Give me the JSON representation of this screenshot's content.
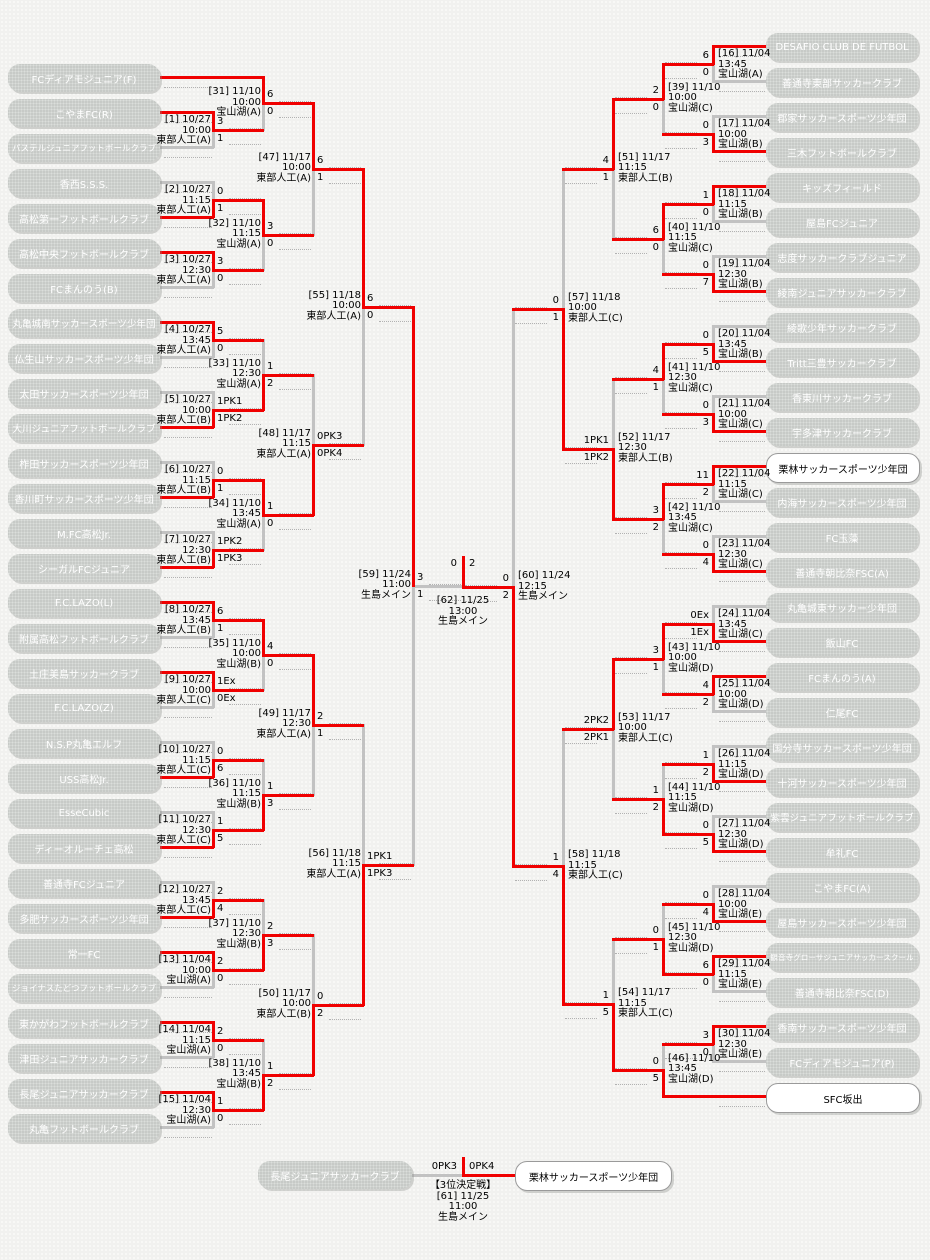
{
  "colors": {
    "red": "#f00000",
    "gray": "#c2c2c2",
    "box_bg": "#c7cac7",
    "box_text": "#ffffff",
    "winner_box_bg": "#ffffff",
    "winner_box_text": "#000000",
    "label_text": "#000000"
  },
  "highlight_teams": [
    "SFC坂出",
    "栗林サッカースポーツ少年団"
  ],
  "left_teams": [
    "FCディアモジュニア(F)",
    "こやまFC(R)",
    "パステルジュニアフットボールクラブ",
    "香西S.S.S.",
    "高松第一フットボールクラブ",
    "高松中央フットボールクラブ",
    "FCまんのう(B)",
    "丸亀城南サッカースポーツ少年団",
    "仏生山サッカースポーツ少年団",
    "太田サッカースポーツ少年団",
    "大川ジュニアフットボールクラブ",
    "柞田サッカースポーツ少年団",
    "香川町サッカースポーツ少年団",
    "M.FC高松Jr.",
    "シーガルFCジュニア",
    "F.C.LAZO(L)",
    "附属高松フットボールクラブ",
    "土庄美島サッカークラブ",
    "F.C.LAZO(Z)",
    "N.S.P丸亀エルフ",
    "USS高松Jr.",
    "EsseCubic",
    "ディーオルーチェ高松",
    "善通寺FCジュニア",
    "多肥サッカースポーツ少年団",
    "常一FC",
    "ジョイナスたどつフットボールクラブ",
    "東かがわフットボールクラブ",
    "津田ジュニアサッカークラブ",
    "長尾ジュニアサッカークラブ",
    "丸亀フットボールクラブ"
  ],
  "right_teams": [
    "DESAFIO CLUB DE FUTBOL",
    "善通寺東部サッカークラブ",
    "郡家サッカースポーツ少年団",
    "三木フットボールクラブ",
    "キッズフィールド",
    "屋島FCジュニア",
    "志度サッカークラブジュニア",
    "綾南ジュニアサッカークラブ",
    "綾歌少年サッカークラブ",
    "Tritt三豊サッカークラブ",
    "香東川サッカークラブ",
    "宇多津サッカークラブ",
    "栗林サッカースポーツ少年団",
    "内海サッカースポーツ少年団",
    "FC玉藻",
    "善通寺朝比奈FSC(A)",
    "丸亀城東サッカー少年団",
    "飯山FC",
    "FCまんのう(A)",
    "仁尾FC",
    "国分寺サッカースポーツ少年団",
    "十河サッカースポーツ少年団",
    "紫雲ジュニアフットボールクラブ",
    "牟礼FC",
    "こやまFC(A)",
    "屋島サッカースポーツ少年団",
    "観音寺グローサジュニアサッカースクール",
    "善通寺朝比奈FSC(D)",
    "香南サッカースポーツ少年団",
    "FCディアモジュニア(P)",
    "SFC坂出"
  ],
  "rounds": {
    "left": {
      "r1": [
        {
          "id": "[1]",
          "date": "10/27",
          "time": "10:00",
          "venue": "東部人工(A)",
          "s_top": "3",
          "s_bot": "1",
          "winner": "top"
        },
        {
          "id": "[2]",
          "date": "10/27",
          "time": "11:15",
          "venue": "東部人工(A)",
          "s_top": "0",
          "s_bot": "1",
          "winner": "bottom"
        },
        {
          "id": "[3]",
          "date": "10/27",
          "time": "12:30",
          "venue": "東部人工(A)",
          "s_top": "3",
          "s_bot": "0",
          "winner": "top"
        },
        {
          "id": "[4]",
          "date": "10/27",
          "time": "13:45",
          "venue": "東部人工(A)",
          "s_top": "5",
          "s_bot": "0",
          "winner": "top"
        },
        {
          "id": "[5]",
          "date": "10/27",
          "time": "10:00",
          "venue": "東部人工(B)",
          "s_top": "1PK1",
          "s_bot": "1PK2",
          "winner": "bottom"
        },
        {
          "id": "[6]",
          "date": "10/27",
          "time": "11:15",
          "venue": "東部人工(B)",
          "s_top": "0",
          "s_bot": "1",
          "winner": "bottom"
        },
        {
          "id": "[7]",
          "date": "10/27",
          "time": "12:30",
          "venue": "東部人工(B)",
          "s_top": "1PK2",
          "s_bot": "1PK3",
          "winner": "bottom"
        },
        {
          "id": "[8]",
          "date": "10/27",
          "time": "13:45",
          "venue": "東部人工(B)",
          "s_top": "6",
          "s_bot": "1",
          "winner": "top"
        },
        {
          "id": "[9]",
          "date": "10/27",
          "time": "10:00",
          "venue": "東部人工(C)",
          "s_top": "1Ex",
          "s_bot": "0Ex",
          "winner": "top"
        },
        {
          "id": "[10]",
          "date": "10/27",
          "time": "11:15",
          "venue": "東部人工(C)",
          "s_top": "0",
          "s_bot": "6",
          "winner": "bottom"
        },
        {
          "id": "[11]",
          "date": "10/27",
          "time": "12:30",
          "venue": "東部人工(C)",
          "s_top": "1",
          "s_bot": "5",
          "winner": "bottom"
        },
        {
          "id": "[12]",
          "date": "10/27",
          "time": "13:45",
          "venue": "東部人工(C)",
          "s_top": "2",
          "s_bot": "4",
          "winner": "bottom"
        },
        {
          "id": "[13]",
          "date": "11/04",
          "time": "10:00",
          "venue": "宝山湖(A)",
          "s_top": "2",
          "s_bot": "0",
          "winner": "top"
        },
        {
          "id": "[14]",
          "date": "11/04",
          "time": "11:15",
          "venue": "宝山湖(A)",
          "s_top": "2",
          "s_bot": "0",
          "winner": "top"
        },
        {
          "id": "[15]",
          "date": "11/04",
          "time": "12:30",
          "venue": "宝山湖(A)",
          "s_top": "1",
          "s_bot": "0",
          "winner": "top"
        }
      ],
      "r2": [
        {
          "id": "[31]",
          "date": "11/10",
          "time": "10:00",
          "venue": "宝山湖(A)",
          "s_top": "6",
          "s_bot": "0",
          "winner": "top"
        },
        {
          "id": "[32]",
          "date": "11/10",
          "time": "11:15",
          "venue": "宝山湖(A)",
          "s_top": "3",
          "s_bot": "0",
          "winner": "top"
        },
        {
          "id": "[33]",
          "date": "11/10",
          "time": "12:30",
          "venue": "宝山湖(A)",
          "s_top": "1",
          "s_bot": "2",
          "winner": "bottom"
        },
        {
          "id": "[34]",
          "date": "11/10",
          "time": "13:45",
          "venue": "宝山湖(A)",
          "s_top": "1",
          "s_bot": "0",
          "winner": "top"
        },
        {
          "id": "[35]",
          "date": "11/10",
          "time": "10:00",
          "venue": "宝山湖(B)",
          "s_top": "4",
          "s_bot": "0",
          "winner": "top"
        },
        {
          "id": "[36]",
          "date": "11/10",
          "time": "11:15",
          "venue": "宝山湖(B)",
          "s_top": "1",
          "s_bot": "3",
          "winner": "bottom"
        },
        {
          "id": "[37]",
          "date": "11/10",
          "time": "12:30",
          "venue": "宝山湖(B)",
          "s_top": "2",
          "s_bot": "3",
          "winner": "bottom"
        },
        {
          "id": "[38]",
          "date": "11/10",
          "time": "13:45",
          "venue": "宝山湖(B)",
          "s_top": "1",
          "s_bot": "2",
          "winner": "bottom"
        }
      ],
      "r3": [
        {
          "id": "[47]",
          "date": "11/17",
          "time": "10:00",
          "venue": "東部人工(A)",
          "s_top": "6",
          "s_bot": "1",
          "winner": "top"
        },
        {
          "id": "[48]",
          "date": "11/17",
          "time": "11:15",
          "venue": "東部人工(A)",
          "s_top": "0PK3",
          "s_bot": "0PK4",
          "winner": "bottom"
        },
        {
          "id": "[49]",
          "date": "11/17",
          "time": "12:30",
          "venue": "東部人工(A)",
          "s_top": "2",
          "s_bot": "1",
          "winner": "top"
        },
        {
          "id": "[50]",
          "date": "11/17",
          "time": "10:00",
          "venue": "東部人工(B)",
          "s_top": "0",
          "s_bot": "2",
          "winner": "bottom"
        }
      ],
      "r4": [
        {
          "id": "[55]",
          "date": "11/18",
          "time": "10:00",
          "venue": "東部人工(A)",
          "s_top": "6",
          "s_bot": "0",
          "winner": "top"
        },
        {
          "id": "[56]",
          "date": "11/18",
          "time": "11:15",
          "venue": "東部人工(A)",
          "s_top": "1PK1",
          "s_bot": "1PK3",
          "winner": "bottom"
        }
      ],
      "sf": [
        {
          "id": "[59]",
          "date": "11/24",
          "time": "11:00",
          "venue": "生島メイン",
          "s_top": "3",
          "s_bot": "1",
          "winner": "top"
        }
      ]
    },
    "right": {
      "r1": [
        {
          "id": "[16]",
          "date": "11/04",
          "time": "13:45",
          "venue": "宝山湖(A)",
          "s_top": "6",
          "s_bot": "0",
          "winner": "top"
        },
        {
          "id": "[17]",
          "date": "11/04",
          "time": "10:00",
          "venue": "宝山湖(B)",
          "s_top": "0",
          "s_bot": "3",
          "winner": "bottom"
        },
        {
          "id": "[18]",
          "date": "11/04",
          "time": "11:15",
          "venue": "宝山湖(B)",
          "s_top": "1",
          "s_bot": "0",
          "winner": "top"
        },
        {
          "id": "[19]",
          "date": "11/04",
          "time": "12:30",
          "venue": "宝山湖(B)",
          "s_top": "0",
          "s_bot": "7",
          "winner": "bottom"
        },
        {
          "id": "[20]",
          "date": "11/04",
          "time": "13:45",
          "venue": "宝山湖(B)",
          "s_top": "0",
          "s_bot": "5",
          "winner": "bottom"
        },
        {
          "id": "[21]",
          "date": "11/04",
          "time": "10:00",
          "venue": "宝山湖(C)",
          "s_top": "0",
          "s_bot": "3",
          "winner": "bottom"
        },
        {
          "id": "[22]",
          "date": "11/04",
          "time": "11:15",
          "venue": "宝山湖(C)",
          "s_top": "11",
          "s_bot": "2",
          "winner": "top"
        },
        {
          "id": "[23]",
          "date": "11/04",
          "time": "12:30",
          "venue": "宝山湖(C)",
          "s_top": "0",
          "s_bot": "4",
          "winner": "bottom"
        },
        {
          "id": "[24]",
          "date": "11/04",
          "time": "13:45",
          "venue": "宝山湖(C)",
          "s_top": "0Ex",
          "s_bot": "1Ex",
          "winner": "bottom"
        },
        {
          "id": "[25]",
          "date": "11/04",
          "time": "10:00",
          "venue": "宝山湖(D)",
          "s_top": "4",
          "s_bot": "2",
          "winner": "top"
        },
        {
          "id": "[26]",
          "date": "11/04",
          "time": "11:15",
          "venue": "宝山湖(D)",
          "s_top": "1",
          "s_bot": "2",
          "winner": "bottom"
        },
        {
          "id": "[27]",
          "date": "11/04",
          "time": "12:30",
          "venue": "宝山湖(D)",
          "s_top": "0",
          "s_bot": "5",
          "winner": "bottom"
        },
        {
          "id": "[28]",
          "date": "11/04",
          "time": "10:00",
          "venue": "宝山湖(E)",
          "s_top": "0",
          "s_bot": "4",
          "winner": "bottom"
        },
        {
          "id": "[29]",
          "date": "11/04",
          "time": "11:15",
          "venue": "宝山湖(E)",
          "s_top": "6",
          "s_bot": "0",
          "winner": "top"
        },
        {
          "id": "[30]",
          "date": "11/04",
          "time": "12:30",
          "venue": "宝山湖(E)",
          "s_top": "3",
          "s_bot": "0",
          "winner": "top"
        }
      ],
      "r2": [
        {
          "id": "[39]",
          "date": "11/10",
          "time": "10:00",
          "venue": "宝山湖(C)",
          "s_top": "2",
          "s_bot": "0",
          "winner": "top"
        },
        {
          "id": "[40]",
          "date": "11/10",
          "time": "11:15",
          "venue": "宝山湖(C)",
          "s_top": "6",
          "s_bot": "0",
          "winner": "top"
        },
        {
          "id": "[41]",
          "date": "11/10",
          "time": "12:30",
          "venue": "宝山湖(C)",
          "s_top": "4",
          "s_bot": "1",
          "winner": "top"
        },
        {
          "id": "[42]",
          "date": "11/10",
          "time": "13:45",
          "venue": "宝山湖(C)",
          "s_top": "3",
          "s_bot": "2",
          "winner": "top"
        },
        {
          "id": "[43]",
          "date": "11/10",
          "time": "10:00",
          "venue": "宝山湖(D)",
          "s_top": "3",
          "s_bot": "1",
          "winner": "top"
        },
        {
          "id": "[44]",
          "date": "11/10",
          "time": "11:15",
          "venue": "宝山湖(D)",
          "s_top": "1",
          "s_bot": "2",
          "winner": "bottom"
        },
        {
          "id": "[45]",
          "date": "11/10",
          "time": "12:30",
          "venue": "宝山湖(D)",
          "s_top": "0",
          "s_bot": "1",
          "winner": "bottom"
        },
        {
          "id": "[46]",
          "date": "11/10",
          "time": "13:45",
          "venue": "宝山湖(D)",
          "s_top": "0",
          "s_bot": "5",
          "winner": "bottom"
        }
      ],
      "r3": [
        {
          "id": "[51]",
          "date": "11/17",
          "time": "11:15",
          "venue": "東部人工(B)",
          "s_top": "4",
          "s_bot": "1",
          "winner": "top"
        },
        {
          "id": "[52]",
          "date": "11/17",
          "time": "12:30",
          "venue": "東部人工(B)",
          "s_top": "1PK1",
          "s_bot": "1PK2",
          "winner": "bottom"
        },
        {
          "id": "[53]",
          "date": "11/17",
          "time": "10:00",
          "venue": "東部人工(C)",
          "s_top": "2PK2",
          "s_bot": "2PK1",
          "winner": "top"
        },
        {
          "id": "[54]",
          "date": "11/17",
          "time": "11:15",
          "venue": "東部人工(C)",
          "s_top": "1",
          "s_bot": "5",
          "winner": "bottom"
        }
      ],
      "r4": [
        {
          "id": "[57]",
          "date": "11/18",
          "time": "10:00",
          "venue": "東部人工(C)",
          "s_top": "0",
          "s_bot": "1",
          "winner": "bottom"
        },
        {
          "id": "[58]",
          "date": "11/18",
          "time": "11:15",
          "venue": "東部人工(C)",
          "s_top": "1",
          "s_bot": "4",
          "winner": "bottom"
        }
      ],
      "sf": [
        {
          "id": "[60]",
          "date": "11/24",
          "time": "12:15",
          "venue": "生島メイン",
          "s_top": "0",
          "s_bot": "2",
          "winner": "bottom"
        }
      ]
    }
  },
  "final": {
    "id": "[62]",
    "date": "11/25",
    "time": "13:00",
    "venue": "生島メイン",
    "score_left": "0",
    "score_right": "2",
    "winner": "right"
  },
  "third_place": {
    "heading": "【3位決定戦】",
    "id": "[61]",
    "date": "11/25",
    "time": "11:00",
    "venue": "生島メイン",
    "left_team": "長尾ジュニアサッカークラブ",
    "right_team": "栗林サッカースポーツ少年団",
    "score_left": "0PK3",
    "score_right": "0PK4",
    "winner": "right"
  }
}
